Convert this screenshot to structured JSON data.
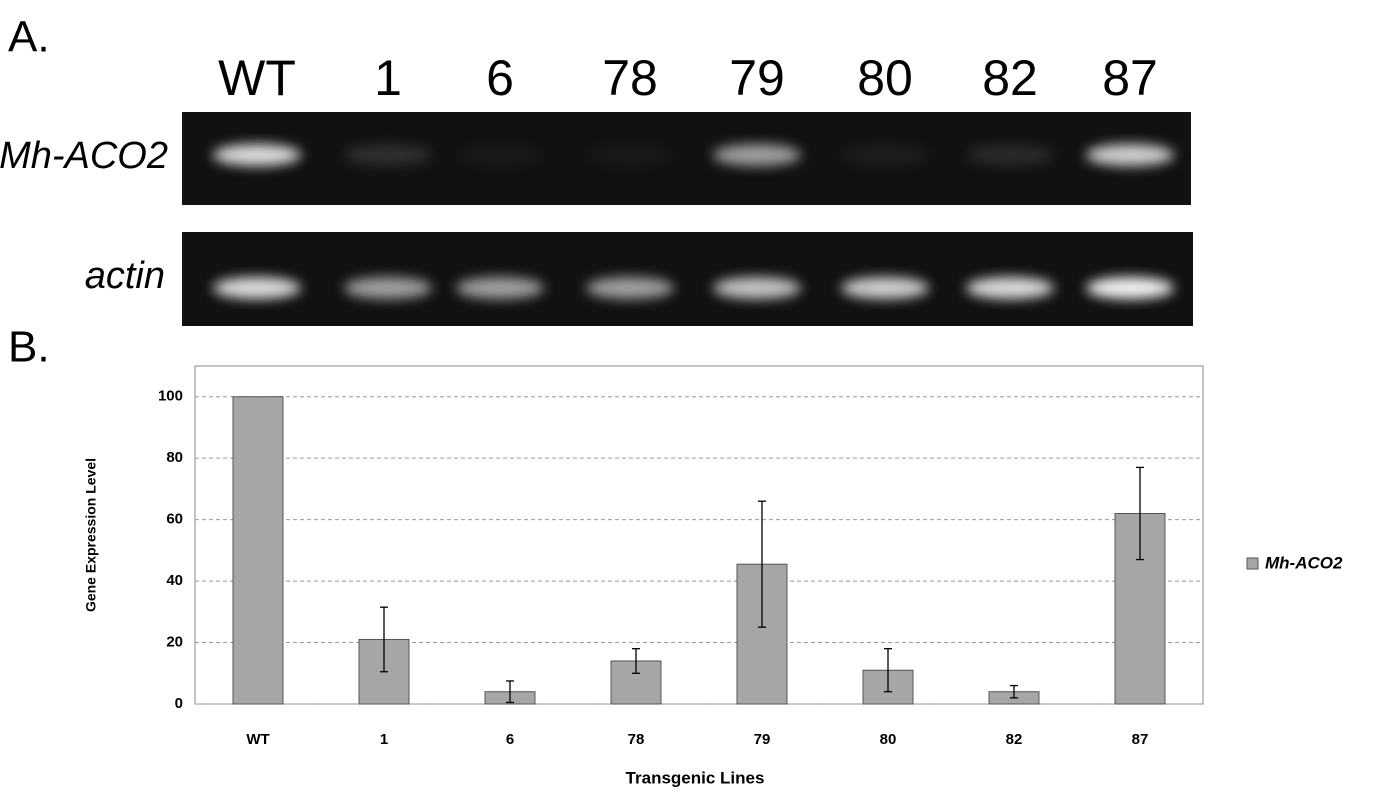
{
  "panels": [
    "A.",
    "B."
  ],
  "gel": {
    "lanes": [
      "WT",
      "1",
      "6",
      "78",
      "79",
      "80",
      "82",
      "87"
    ],
    "rows": [
      "Mh-ACO2",
      "actin"
    ]
  },
  "chart_data": {
    "type": "bar",
    "categories": [
      "WT",
      "1",
      "6",
      "78",
      "79",
      "80",
      "82",
      "87"
    ],
    "series": [
      {
        "name": "Mh-ACO2",
        "color": "#a6a6a6",
        "values": [
          100,
          21,
          4,
          14,
          45.5,
          11,
          4,
          62
        ],
        "errors": [
          null,
          10.5,
          3.5,
          4,
          20.5,
          7,
          2,
          15
        ]
      }
    ],
    "x_label": "Transgenic Lines",
    "y_label": "Gene Expression Level",
    "ylim": [
      0,
      110
    ],
    "yticks": [
      0,
      20,
      40,
      60,
      80,
      100
    ],
    "grid": true,
    "legend": "right"
  }
}
